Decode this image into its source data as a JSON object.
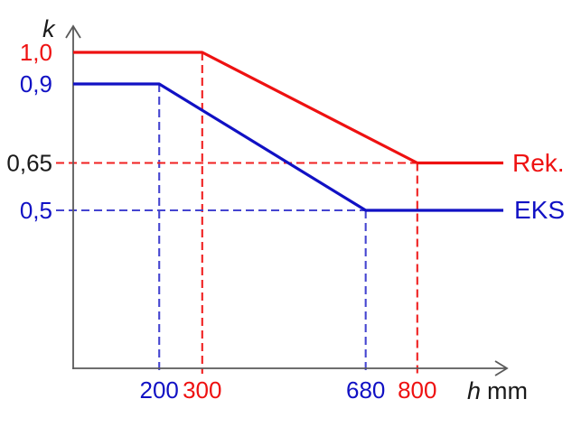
{
  "colors": {
    "rek_red": "#ee1111",
    "eks_blue": "#1111c4",
    "dashed_red": "#f02020",
    "dashed_blue": "#4545d0",
    "axis_gray": "#5a5a5a",
    "text_black": "#1a1a1a",
    "background": "#ffffff"
  },
  "chart_data": {
    "type": "line",
    "title": "",
    "ylabel": "k",
    "xlabel_var": "h",
    "xlabel_unit": "mm",
    "xlabel": "h (mm)",
    "xlim": [
      0,
      1000
    ],
    "ylim": [
      0,
      1.0
    ],
    "grid": "off",
    "legend_position": "right-of-line-ends",
    "axis_color": "#5a5a5a",
    "series": [
      {
        "name": "Rek.",
        "color": "#ee1111",
        "points": [
          [
            0,
            1.0
          ],
          [
            300,
            1.0
          ],
          [
            800,
            0.65
          ],
          [
            1000,
            0.65
          ]
        ]
      },
      {
        "name": "EKS",
        "color": "#1111c4",
        "points": [
          [
            0,
            0.9
          ],
          [
            200,
            0.9
          ],
          [
            680,
            0.5
          ],
          [
            1000,
            0.5
          ]
        ]
      }
    ],
    "x_ticks": [
      {
        "value": 200,
        "label": "200",
        "color": "#1111c4"
      },
      {
        "value": 300,
        "label": "300",
        "color": "#ee1111"
      },
      {
        "value": 680,
        "label": "680",
        "color": "#1111c4"
      },
      {
        "value": 800,
        "label": "800",
        "color": "#ee1111"
      }
    ],
    "y_ticks": [
      {
        "value": 1.0,
        "label": "1,0",
        "color": "#ee1111"
      },
      {
        "value": 0.9,
        "label": "0,9",
        "color": "#1111c4"
      },
      {
        "value": 0.65,
        "label": "0,65",
        "color": "#1a1a1a"
      },
      {
        "value": 0.5,
        "label": "0,5",
        "color": "#1111c4"
      }
    ],
    "guides": [
      {
        "orient": "v",
        "at": 300,
        "from": 1.0,
        "color": "#f02020"
      },
      {
        "orient": "v",
        "at": 800,
        "from": 0.65,
        "color": "#f02020"
      },
      {
        "orient": "v",
        "at": 200,
        "from": 0.9,
        "color": "#4545d0"
      },
      {
        "orient": "v",
        "at": 680,
        "from": 0.5,
        "color": "#4545d0"
      },
      {
        "orient": "h",
        "at": 0.65,
        "to": 800,
        "color": "#f02020"
      },
      {
        "orient": "h",
        "at": 0.5,
        "to": 680,
        "color": "#4545d0"
      }
    ]
  }
}
